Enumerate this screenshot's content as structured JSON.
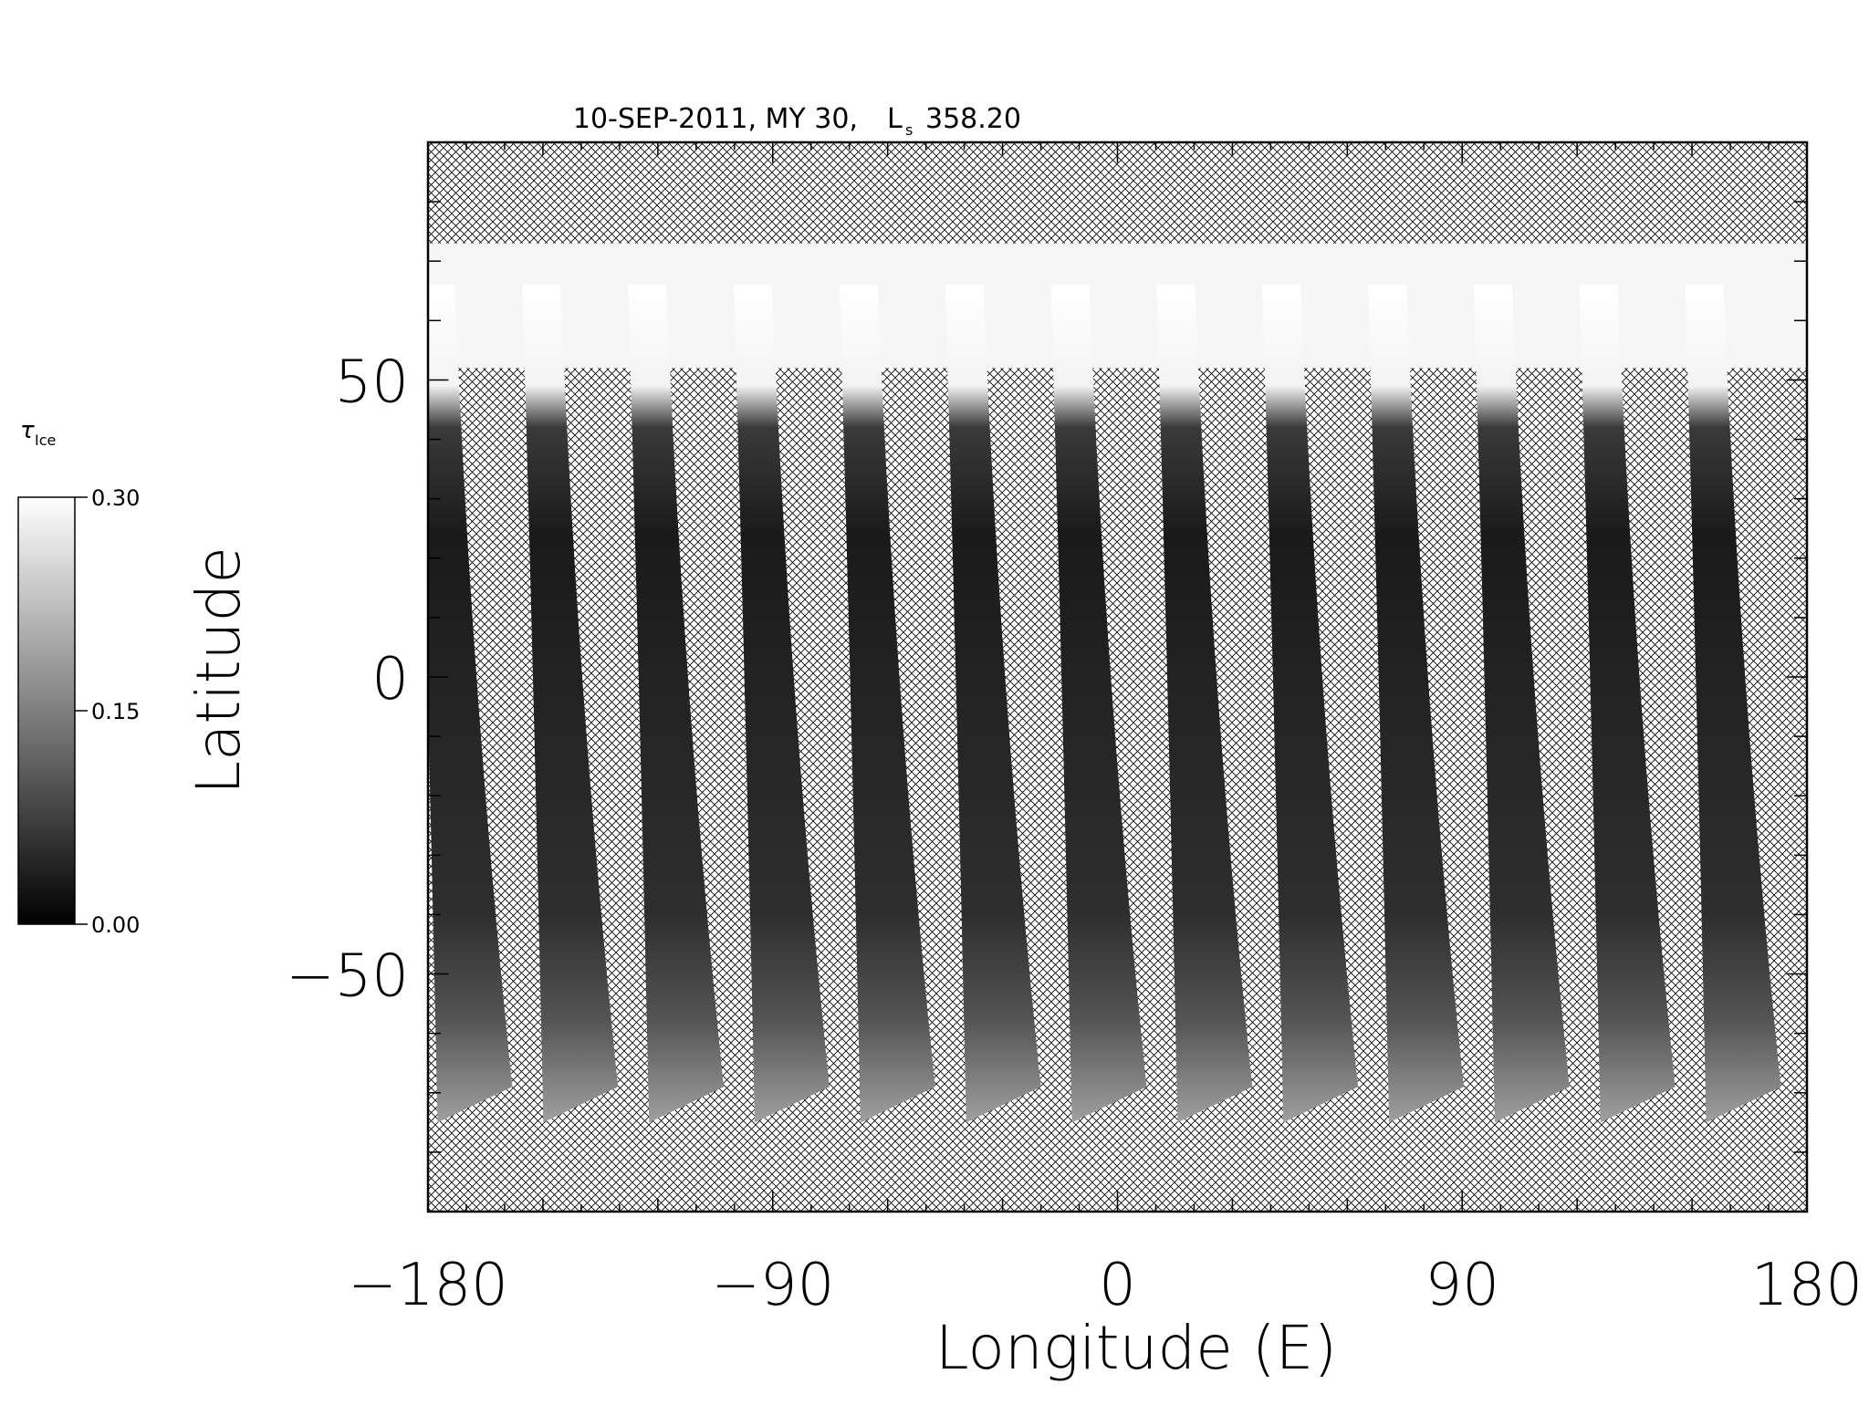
{
  "chart_data": {
    "type": "heatmap",
    "title_prefix": "10-SEP-2011, MY 30,",
    "title_ls_symbol": "L",
    "title_ls_subscript": "s",
    "title_ls_value": "358.20",
    "xlabel": "Longitude (E)",
    "ylabel": "Latitude",
    "xlim": [
      -180,
      180
    ],
    "ylim": [
      -90,
      90
    ],
    "x_ticks": [
      {
        "value": -180,
        "label": "−180"
      },
      {
        "value": -90,
        "label": "−90"
      },
      {
        "value": 0,
        "label": "0"
      },
      {
        "value": 90,
        "label": "90"
      },
      {
        "value": 180,
        "label": "180"
      }
    ],
    "y_ticks": [
      {
        "value": 50,
        "label": "50"
      },
      {
        "value": 0,
        "label": "0"
      },
      {
        "value": -50,
        "label": "−50"
      }
    ],
    "colorbar": {
      "title": "τ",
      "title_sub": "Ice",
      "min": 0.0,
      "max": 0.3,
      "ticks": [
        {
          "value": 0.3,
          "label": "0.30"
        },
        {
          "value": 0.15,
          "label": "0.15"
        },
        {
          "value": 0.0,
          "label": "0.00"
        }
      ],
      "color_low": "#000000",
      "color_high": "#ffffff"
    },
    "swath": {
      "count": 13,
      "first_center_lon_north": -178,
      "spacing_lon": 27.6,
      "north_lat": 66,
      "south_lat": -75,
      "north_halfwidth_lon": 5,
      "south_halfwidth_lon": 15,
      "south_offset_lon": 5,
      "north_cap_lat": 73,
      "north_cap_edge_lat": 52
    },
    "missing_data_pattern": "crosshatch"
  }
}
